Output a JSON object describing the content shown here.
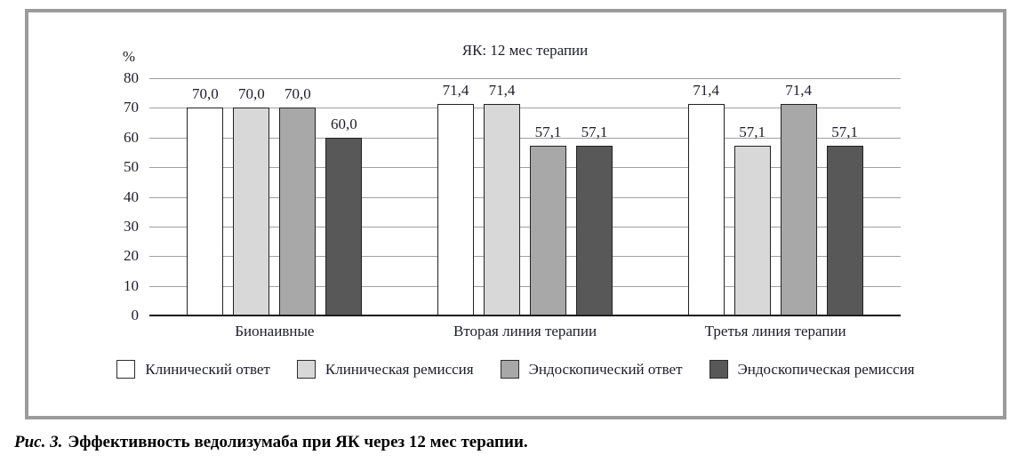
{
  "figure": {
    "caption_label": "Рис. 3.",
    "caption_text": "Эффективность ведолизумаба при ЯК через 12 мес терапии."
  },
  "chart_data": {
    "type": "bar",
    "title": "ЯК: 12 мес терапии",
    "y_unit": "%",
    "categories": [
      "Бионаивные",
      "Вторая линия терапии",
      "Третья линия терапии"
    ],
    "series": [
      {
        "name": "Клинический ответ",
        "color": "#ffffff",
        "values": [
          70.0,
          71.4,
          71.4
        ]
      },
      {
        "name": "Клиническая ремиссия",
        "color": "#d8d8d8",
        "values": [
          70.0,
          71.4,
          57.1
        ]
      },
      {
        "name": "Эндоскопический ответ",
        "color": "#a8a8a8",
        "values": [
          70.0,
          57.1,
          71.4
        ]
      },
      {
        "name": "Эндоскопическая ремиссия",
        "color": "#585858",
        "values": [
          60.0,
          57.1,
          57.1
        ]
      }
    ],
    "value_labels": [
      [
        "70,0",
        "71,4",
        "71,4"
      ],
      [
        "70,0",
        "71,4",
        "57,1"
      ],
      [
        "70,0",
        "57,1",
        "71,4"
      ],
      [
        "60,0",
        "57,1",
        "57,1"
      ]
    ],
    "ylim": [
      0,
      80
    ],
    "yticks": [
      0,
      10,
      20,
      30,
      40,
      50,
      60,
      70,
      80
    ],
    "grid": true,
    "legend_position": "bottom",
    "colors": {
      "bar_border": "#222222",
      "grid_line": "#a0a0a0",
      "axis_line": "#141414",
      "text": "#1d1d28",
      "frame_border": "#9b9b9b"
    }
  }
}
